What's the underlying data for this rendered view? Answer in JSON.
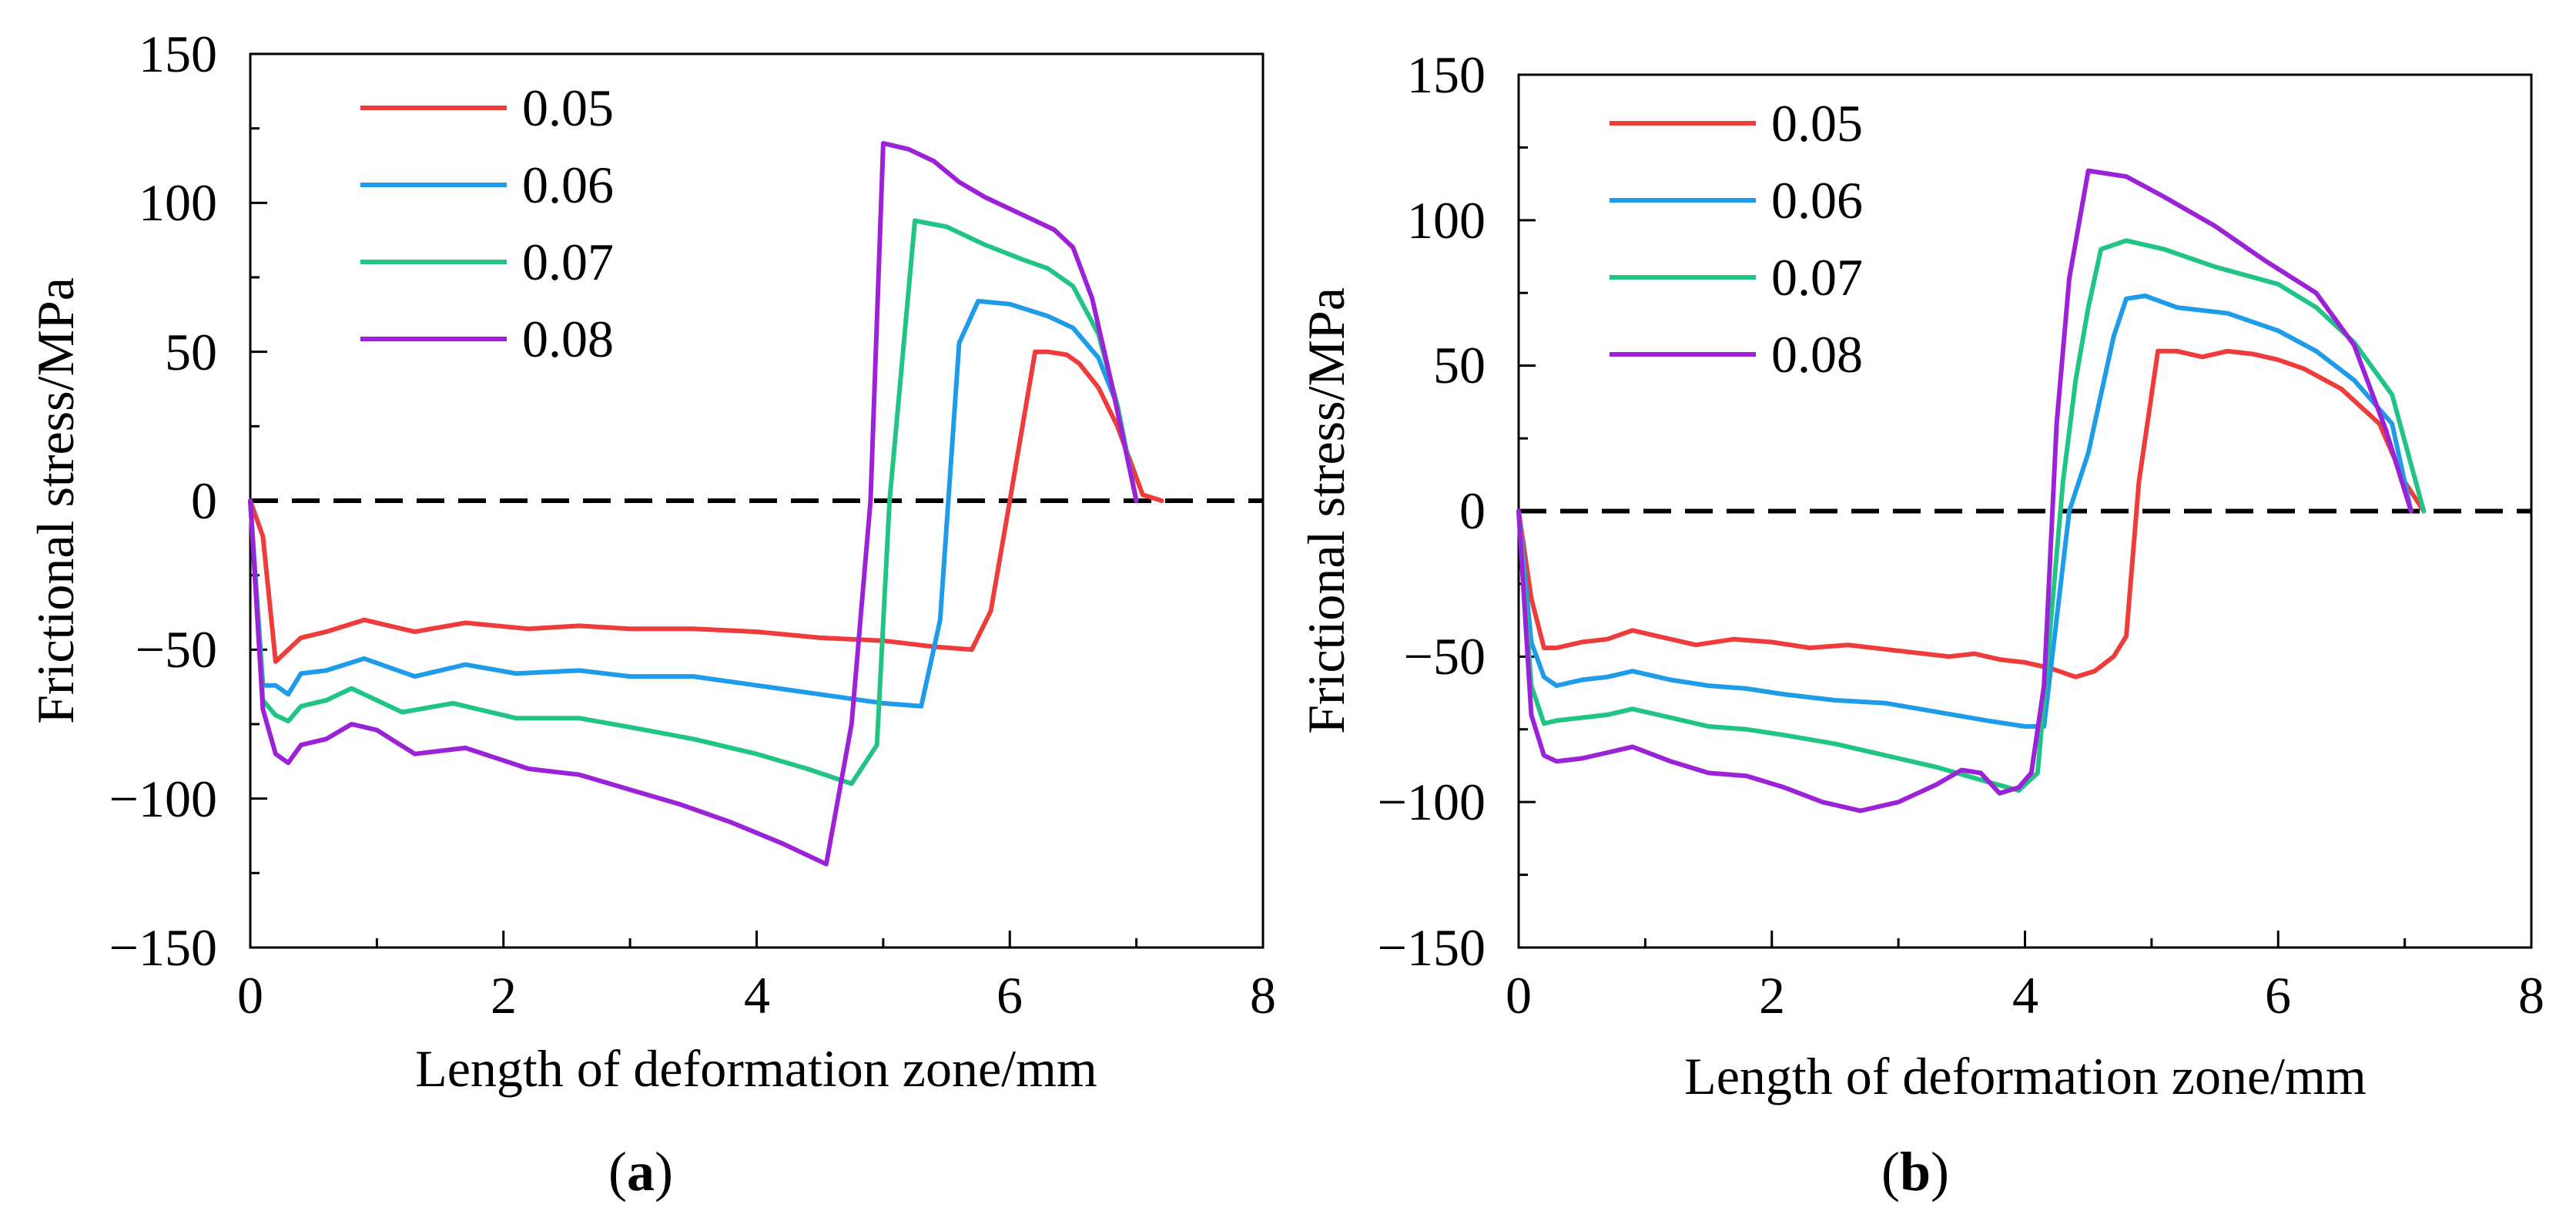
{
  "chart_data": [
    {
      "type": "line",
      "panel_label": "a",
      "title": "",
      "xlabel": "Length of deformation zone/mm",
      "ylabel": "Frictional stress/MPa",
      "xlim": [
        0,
        8
      ],
      "ylim": [
        -150,
        150
      ],
      "x_ticks": [
        0,
        2,
        4,
        6,
        8
      ],
      "x_tick_labels": [
        "0",
        "2",
        "4",
        "6",
        "8"
      ],
      "y_ticks": [
        150,
        100,
        50,
        0,
        -50,
        -100,
        -150
      ],
      "y_tick_labels": [
        "150",
        "100",
        "50",
        "0",
        "−50",
        "−100",
        "−150"
      ],
      "grid": false,
      "legend_position": "top-left",
      "reference_line": {
        "y": 0,
        "style": "dashed",
        "color": "#000000"
      },
      "series": [
        {
          "name": "0.05",
          "color": "#ee3b3b",
          "x": [
            0,
            0.1,
            0.2,
            0.3,
            0.4,
            0.6,
            0.9,
            1.3,
            1.7,
            2.2,
            2.6,
            3.0,
            3.5,
            4.0,
            4.5,
            5.0,
            5.4,
            5.7,
            5.85,
            6.0,
            6.2,
            6.3,
            6.45,
            6.55,
            6.7,
            6.85,
            7.05,
            7.2
          ],
          "y": [
            0,
            -12,
            -54,
            -50,
            -46,
            -44,
            -40,
            -44,
            -41,
            -43,
            -42,
            -43,
            -43,
            -44,
            -46,
            -47,
            -49,
            -50,
            -37,
            0,
            50,
            50,
            49,
            46,
            38,
            25,
            2,
            0
          ]
        },
        {
          "name": "0.06",
          "color": "#1e9be9",
          "x": [
            0,
            0.1,
            0.2,
            0.3,
            0.4,
            0.6,
            0.9,
            1.3,
            1.7,
            2.1,
            2.6,
            3.0,
            3.5,
            4.0,
            4.5,
            5.0,
            5.3,
            5.45,
            5.6,
            5.75,
            6.0,
            6.3,
            6.5,
            6.7,
            6.85,
            7.0
          ],
          "y": [
            0,
            -62,
            -62,
            -65,
            -58,
            -57,
            -53,
            -59,
            -55,
            -58,
            -57,
            -59,
            -59,
            -62,
            -65,
            -68,
            -69,
            -40,
            53,
            67,
            66,
            62,
            58,
            48,
            32,
            0
          ]
        },
        {
          "name": "0.07",
          "color": "#20c485",
          "x": [
            0,
            0.1,
            0.2,
            0.3,
            0.4,
            0.6,
            0.8,
            1.2,
            1.6,
            2.1,
            2.6,
            3.0,
            3.5,
            4.0,
            4.4,
            4.75,
            4.95,
            5.05,
            5.25,
            5.5,
            5.8,
            6.1,
            6.3,
            6.5,
            6.7,
            6.85,
            7.0
          ],
          "y": [
            0,
            -67,
            -72,
            -74,
            -69,
            -67,
            -63,
            -71,
            -68,
            -73,
            -73,
            -76,
            -80,
            -85,
            -90,
            -95,
            -82,
            0,
            94,
            92,
            86,
            81,
            78,
            72,
            56,
            32,
            0
          ]
        },
        {
          "name": "0.08",
          "color": "#9b22d6",
          "x": [
            0,
            0.1,
            0.2,
            0.3,
            0.4,
            0.6,
            0.8,
            1.0,
            1.3,
            1.7,
            2.2,
            2.6,
            3.0,
            3.4,
            3.8,
            4.2,
            4.55,
            4.75,
            4.9,
            5.0,
            5.2,
            5.4,
            5.6,
            5.8,
            6.1,
            6.35,
            6.5,
            6.65,
            6.8,
            7.0
          ],
          "y": [
            0,
            -70,
            -85,
            -88,
            -82,
            -80,
            -75,
            -77,
            -85,
            -83,
            -90,
            -92,
            -97,
            -102,
            -108,
            -115,
            -122,
            -75,
            0,
            120,
            118,
            114,
            107,
            102,
            96,
            91,
            85,
            68,
            40,
            0
          ]
        }
      ]
    },
    {
      "type": "line",
      "panel_label": "b",
      "title": "",
      "xlabel": "Length of deformation zone/mm",
      "ylabel": "Frictional stress/MPa",
      "xlim": [
        0,
        8
      ],
      "ylim": [
        -150,
        150
      ],
      "x_ticks": [
        0,
        2,
        4,
        6,
        8
      ],
      "x_tick_labels": [
        "0",
        "2",
        "4",
        "6",
        "8"
      ],
      "y_ticks": [
        150,
        100,
        50,
        0,
        -50,
        -100,
        -150
      ],
      "y_tick_labels": [
        "150",
        "100",
        "50",
        "0",
        "−50",
        "−100",
        "−150"
      ],
      "grid": false,
      "legend_position": "top-left",
      "reference_line": {
        "y": 0,
        "style": "dashed",
        "color": "#000000"
      },
      "series": [
        {
          "name": "0.05",
          "color": "#ee3b3b",
          "x": [
            0,
            0.1,
            0.2,
            0.3,
            0.5,
            0.7,
            0.9,
            1.1,
            1.4,
            1.7,
            2.0,
            2.3,
            2.6,
            3.0,
            3.4,
            3.6,
            3.8,
            4.0,
            4.2,
            4.4,
            4.55,
            4.7,
            4.8,
            4.9,
            5.05,
            5.2,
            5.4,
            5.6,
            5.8,
            6.0,
            6.2,
            6.5,
            6.8,
            7.0,
            7.15
          ],
          "y": [
            0,
            -30,
            -47,
            -47,
            -45,
            -44,
            -41,
            -43,
            -46,
            -44,
            -45,
            -47,
            -46,
            -48,
            -50,
            -49,
            -51,
            -52,
            -54,
            -57,
            -55,
            -50,
            -43,
            10,
            55,
            55,
            53,
            55,
            54,
            52,
            49,
            42,
            30,
            10,
            0
          ]
        },
        {
          "name": "0.06",
          "color": "#1e9be9",
          "x": [
            0,
            0.1,
            0.2,
            0.3,
            0.5,
            0.7,
            0.9,
            1.2,
            1.5,
            1.8,
            2.1,
            2.5,
            2.9,
            3.3,
            3.7,
            4.0,
            4.15,
            4.35,
            4.5,
            4.6,
            4.7,
            4.8,
            4.95,
            5.2,
            5.6,
            6.0,
            6.3,
            6.6,
            6.9,
            7.05
          ],
          "y": [
            0,
            -45,
            -57,
            -60,
            -58,
            -57,
            -55,
            -58,
            -60,
            -61,
            -63,
            -65,
            -66,
            -69,
            -72,
            -74,
            -74,
            0,
            20,
            40,
            60,
            73,
            74,
            70,
            68,
            62,
            55,
            45,
            30,
            0
          ]
        },
        {
          "name": "0.07",
          "color": "#20c485",
          "x": [
            0,
            0.1,
            0.2,
            0.3,
            0.5,
            0.7,
            0.9,
            1.2,
            1.5,
            1.8,
            2.1,
            2.5,
            2.9,
            3.3,
            3.7,
            3.95,
            4.1,
            4.2,
            4.3,
            4.4,
            4.5,
            4.6,
            4.8,
            5.1,
            5.5,
            6.0,
            6.3,
            6.6,
            6.9,
            7.15
          ],
          "y": [
            0,
            -60,
            -73,
            -72,
            -71,
            -70,
            -68,
            -71,
            -74,
            -75,
            -77,
            -80,
            -84,
            -88,
            -93,
            -96,
            -90,
            -40,
            10,
            45,
            70,
            90,
            93,
            90,
            84,
            78,
            70,
            58,
            40,
            0
          ]
        },
        {
          "name": "0.08",
          "color": "#9b22d6",
          "x": [
            0,
            0.1,
            0.2,
            0.3,
            0.5,
            0.7,
            0.9,
            1.2,
            1.5,
            1.8,
            2.1,
            2.4,
            2.7,
            3.0,
            3.3,
            3.5,
            3.65,
            3.8,
            3.95,
            4.05,
            4.15,
            4.25,
            4.35,
            4.5,
            4.8,
            5.1,
            5.5,
            5.9,
            6.3,
            6.6,
            6.85,
            7.05
          ],
          "y": [
            0,
            -70,
            -84,
            -86,
            -85,
            -83,
            -81,
            -86,
            -90,
            -91,
            -95,
            -100,
            -103,
            -100,
            -94,
            -89,
            -90,
            -97,
            -95,
            -90,
            -60,
            30,
            80,
            117,
            115,
            108,
            98,
            86,
            75,
            57,
            28,
            0
          ]
        }
      ]
    }
  ]
}
